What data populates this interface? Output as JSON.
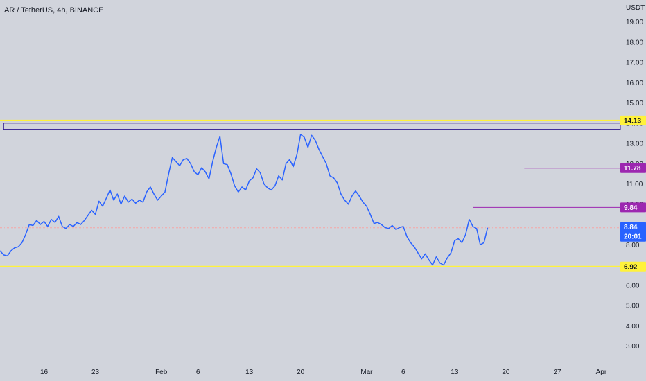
{
  "header": {
    "title": "AR / TetherUS, 4h, BINANCE"
  },
  "colors": {
    "background": "#d1d4dc",
    "price_line": "#2962ff",
    "support_resistance": "#fff23b",
    "target_line": "#9c27b0",
    "range_box_border": "#311b92",
    "current_price_line": "#f7a5a5"
  },
  "chart_data": {
    "type": "line",
    "title": "AR / TetherUS, 4h, BINANCE",
    "ylabel": "USDT",
    "ylim": [
      2.5,
      19.5
    ],
    "y_ticks": [
      3.0,
      4.0,
      5.0,
      6.0,
      7.0,
      8.0,
      9.0,
      10.0,
      11.0,
      12.0,
      13.0,
      14.0,
      15.0,
      16.0,
      17.0,
      18.0,
      19.0
    ],
    "x_day_range": [
      10,
      93
    ],
    "x_ticks": [
      {
        "label": "16",
        "day": 16
      },
      {
        "label": "23",
        "day": 23
      },
      {
        "label": "Feb",
        "day": 32
      },
      {
        "label": "6",
        "day": 37
      },
      {
        "label": "13",
        "day": 44
      },
      {
        "label": "20",
        "day": 51
      },
      {
        "label": "Mar",
        "day": 60
      },
      {
        "label": "6",
        "day": 65
      },
      {
        "label": "13",
        "day": 72
      },
      {
        "label": "20",
        "day": 79
      },
      {
        "label": "27",
        "day": 86
      },
      {
        "label": "Apr",
        "day": 92
      }
    ],
    "series": [
      {
        "color": "#2962ff",
        "points": [
          [
            10.0,
            7.7
          ],
          [
            10.5,
            7.5
          ],
          [
            11.0,
            7.45
          ],
          [
            11.5,
            7.7
          ],
          [
            12.0,
            7.85
          ],
          [
            12.5,
            7.9
          ],
          [
            13.0,
            8.1
          ],
          [
            13.5,
            8.5
          ],
          [
            14.0,
            9.0
          ],
          [
            14.5,
            8.95
          ],
          [
            15.0,
            9.2
          ],
          [
            15.5,
            9.0
          ],
          [
            16.0,
            9.15
          ],
          [
            16.5,
            8.9
          ],
          [
            17.0,
            9.25
          ],
          [
            17.5,
            9.1
          ],
          [
            18.0,
            9.4
          ],
          [
            18.5,
            8.9
          ],
          [
            19.0,
            8.8
          ],
          [
            19.5,
            9.0
          ],
          [
            20.0,
            8.9
          ],
          [
            20.5,
            9.1
          ],
          [
            21.0,
            9.0
          ],
          [
            21.5,
            9.2
          ],
          [
            22.0,
            9.45
          ],
          [
            22.5,
            9.7
          ],
          [
            23.0,
            9.5
          ],
          [
            23.5,
            10.15
          ],
          [
            24.0,
            9.9
          ],
          [
            24.5,
            10.3
          ],
          [
            25.0,
            10.7
          ],
          [
            25.5,
            10.2
          ],
          [
            26.0,
            10.5
          ],
          [
            26.5,
            10.0
          ],
          [
            27.0,
            10.4
          ],
          [
            27.5,
            10.1
          ],
          [
            28.0,
            10.25
          ],
          [
            28.5,
            10.05
          ],
          [
            29.0,
            10.2
          ],
          [
            29.5,
            10.1
          ],
          [
            30.0,
            10.6
          ],
          [
            30.5,
            10.85
          ],
          [
            31.0,
            10.5
          ],
          [
            31.5,
            10.2
          ],
          [
            32.0,
            10.4
          ],
          [
            32.5,
            10.6
          ],
          [
            33.0,
            11.5
          ],
          [
            33.5,
            12.3
          ],
          [
            34.0,
            12.1
          ],
          [
            34.5,
            11.9
          ],
          [
            35.0,
            12.2
          ],
          [
            35.5,
            12.25
          ],
          [
            36.0,
            12.0
          ],
          [
            36.5,
            11.6
          ],
          [
            37.0,
            11.45
          ],
          [
            37.5,
            11.8
          ],
          [
            38.0,
            11.6
          ],
          [
            38.5,
            11.25
          ],
          [
            39.0,
            12.1
          ],
          [
            39.5,
            12.8
          ],
          [
            40.0,
            13.35
          ],
          [
            40.5,
            12.0
          ],
          [
            41.0,
            11.95
          ],
          [
            41.5,
            11.5
          ],
          [
            42.0,
            10.9
          ],
          [
            42.5,
            10.6
          ],
          [
            43.0,
            10.85
          ],
          [
            43.5,
            10.7
          ],
          [
            44.0,
            11.15
          ],
          [
            44.5,
            11.3
          ],
          [
            45.0,
            11.75
          ],
          [
            45.5,
            11.55
          ],
          [
            46.0,
            11.0
          ],
          [
            46.5,
            10.8
          ],
          [
            47.0,
            10.7
          ],
          [
            47.5,
            10.9
          ],
          [
            48.0,
            11.4
          ],
          [
            48.5,
            11.2
          ],
          [
            49.0,
            12.0
          ],
          [
            49.5,
            12.2
          ],
          [
            50.0,
            11.85
          ],
          [
            50.5,
            12.45
          ],
          [
            51.0,
            13.45
          ],
          [
            51.5,
            13.3
          ],
          [
            52.0,
            12.8
          ],
          [
            52.5,
            13.4
          ],
          [
            53.0,
            13.15
          ],
          [
            53.5,
            12.7
          ],
          [
            54.0,
            12.35
          ],
          [
            54.5,
            12.0
          ],
          [
            55.0,
            11.4
          ],
          [
            55.5,
            11.3
          ],
          [
            56.0,
            11.05
          ],
          [
            56.5,
            10.5
          ],
          [
            57.0,
            10.2
          ],
          [
            57.5,
            10.0
          ],
          [
            58.0,
            10.4
          ],
          [
            58.5,
            10.65
          ],
          [
            59.0,
            10.4
          ],
          [
            59.5,
            10.1
          ],
          [
            60.0,
            9.9
          ],
          [
            60.5,
            9.5
          ],
          [
            61.0,
            9.05
          ],
          [
            61.5,
            9.1
          ],
          [
            62.0,
            9.0
          ],
          [
            62.5,
            8.85
          ],
          [
            63.0,
            8.8
          ],
          [
            63.5,
            8.95
          ],
          [
            64.0,
            8.75
          ],
          [
            64.5,
            8.85
          ],
          [
            65.0,
            8.9
          ],
          [
            65.5,
            8.4
          ],
          [
            66.0,
            8.1
          ],
          [
            66.5,
            7.9
          ],
          [
            67.0,
            7.6
          ],
          [
            67.5,
            7.3
          ],
          [
            68.0,
            7.55
          ],
          [
            68.5,
            7.25
          ],
          [
            69.0,
            7.0
          ],
          [
            69.5,
            7.4
          ],
          [
            70.0,
            7.1
          ],
          [
            70.5,
            7.0
          ],
          [
            71.0,
            7.35
          ],
          [
            71.5,
            7.6
          ],
          [
            72.0,
            8.2
          ],
          [
            72.5,
            8.3
          ],
          [
            73.0,
            8.1
          ],
          [
            73.5,
            8.5
          ],
          [
            74.0,
            9.25
          ],
          [
            74.5,
            8.9
          ],
          [
            75.0,
            8.8
          ],
          [
            75.5,
            8.0
          ],
          [
            76.0,
            8.1
          ],
          [
            76.5,
            8.84
          ]
        ]
      }
    ],
    "horizontal_levels": [
      {
        "value": 14.13,
        "color": "#fff23b",
        "label": "14.13"
      },
      {
        "value": 6.92,
        "color": "#fff23b",
        "label": "6.92"
      }
    ],
    "target_lines": [
      {
        "value": 11.78,
        "from_day": 81.5,
        "color": "#9c27b0",
        "label": "11.78"
      },
      {
        "value": 9.84,
        "from_day": 74.5,
        "color": "#9c27b0",
        "label": "9.84"
      }
    ],
    "range_box": {
      "from_day": 10.5,
      "y_low": 13.7,
      "y_high": 14.0,
      "color": "#311b92"
    },
    "current_price": {
      "value": 8.84,
      "label": "8.84",
      "countdown": "20:01",
      "color": "#2962ff"
    }
  }
}
